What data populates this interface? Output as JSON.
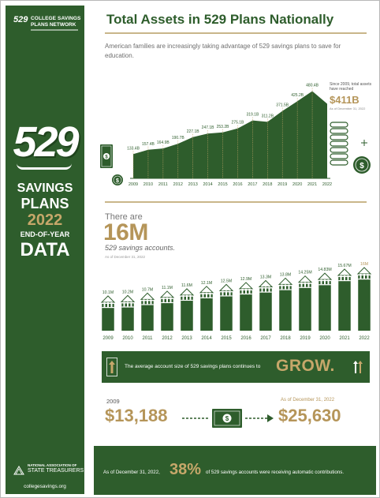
{
  "sidebar": {
    "logo_mark": "529",
    "logo_line1": "COLLEGE SAVINGS",
    "logo_line2": "PLANS NETWORK",
    "big_529": "529",
    "title_savings": "SAVINGS",
    "title_plans": "PLANS",
    "title_year": "2022",
    "title_end": "END-OF-YEAR",
    "title_data": "DATA",
    "nast_line1": "NATIONAL ASSOCIATION OF",
    "nast_line2": "STATE TREASURERS",
    "url": "collegesavings.org"
  },
  "header": {
    "title": "Total Assets in 529 Plans Nationally",
    "intro": "American families are increasingly taking advantage of 529 savings plans to save for education."
  },
  "assets_callout": {
    "since_text": "Since 2009, total assets have reached",
    "value": "$411B",
    "as_of": "As of December 31, 2022"
  },
  "accounts": {
    "there_are": "There are",
    "total": "16M",
    "label": "529 savings accounts.",
    "as_of": "As of December 31, 2022"
  },
  "grow": {
    "text": "The average account size of 529 savings plans continues to",
    "word": "GROW."
  },
  "compare": {
    "year_2009": "2009",
    "value_2009": "$13,188",
    "as_of_2022": "As of December 31, 2022",
    "value_2022": "$25,630"
  },
  "auto": {
    "pre": "As of December 31, 2022,",
    "pct": "38%",
    "post": "of 529 savings accounts were receiving automatic contributions."
  },
  "colors": {
    "green": "#2e5d2c",
    "gold": "#b59559",
    "gold_light": "#c6a76a"
  },
  "icons": [
    "money-bill-icon",
    "coin-stack-icon",
    "sparkle-icon",
    "bank-building-icon",
    "up-arrow-icon",
    "state-seal-icon"
  ],
  "chart_data": [
    {
      "type": "area",
      "x": [
        "2009",
        "2010",
        "2011",
        "2012",
        "2013",
        "2014",
        "2015",
        "2016",
        "2017",
        "2018",
        "2019",
        "2020",
        "2021",
        "2022"
      ],
      "labels": [
        "133.4B",
        "157.4B",
        "164.9B",
        "190.7B",
        "227.1B",
        "247.1B",
        "253.2B",
        "275.1B",
        "319.1B",
        "311.2B",
        "371.5B",
        "425.2B",
        "480.4B",
        ""
      ],
      "values": [
        133.4,
        157.4,
        164.9,
        190.7,
        227.1,
        247.1,
        253.2,
        275.1,
        319.1,
        311.2,
        371.5,
        425.2,
        480.4,
        411
      ],
      "ylim": [
        0,
        500
      ],
      "grid": false
    },
    {
      "type": "bar",
      "categories": [
        "2009",
        "2010",
        "2011",
        "2012",
        "2013",
        "2014",
        "2015",
        "2016",
        "2017",
        "2018",
        "2019",
        "2020",
        "2021",
        "2022"
      ],
      "labels": [
        "10.1M",
        "10.2M",
        "10.7M",
        "11.1M",
        "11.6M",
        "12.1M",
        "12.5M",
        "12.9M",
        "13.3M",
        "13.8M",
        "14.25M",
        "14.83M",
        "15.67M",
        "16M"
      ],
      "values": [
        10.1,
        10.2,
        10.7,
        11.1,
        11.6,
        12.1,
        12.5,
        12.9,
        13.3,
        13.8,
        14.25,
        14.83,
        15.67,
        16
      ],
      "ylim": [
        0,
        16
      ],
      "grid": false
    }
  ]
}
